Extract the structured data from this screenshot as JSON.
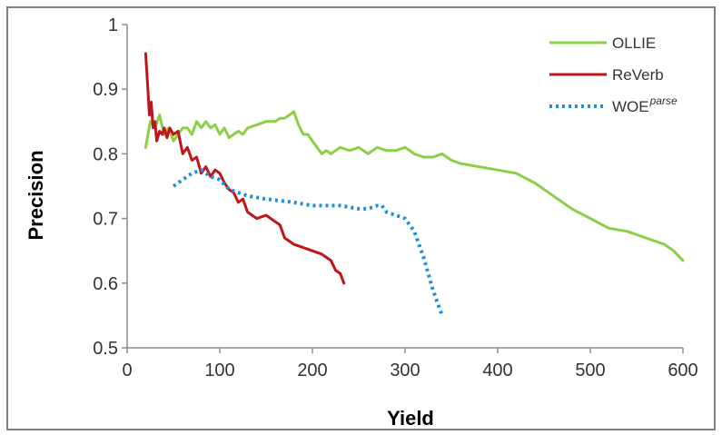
{
  "chart_data": {
    "type": "line",
    "xlabel": "Yield",
    "ylabel": "Precision",
    "xlim": [
      0,
      600
    ],
    "ylim": [
      0.5,
      1.0
    ],
    "x_ticks": [
      "0",
      "100",
      "200",
      "300",
      "400",
      "500",
      "600"
    ],
    "y_ticks": [
      "0.5",
      "0.6",
      "0.7",
      "0.8",
      "0.9",
      "1"
    ],
    "grid": false,
    "legend_position": "top-right",
    "series": [
      {
        "name": "OLLIE",
        "superscript": "",
        "color": "#8ccf45",
        "style": "solid",
        "x": [
          20,
          25,
          30,
          35,
          40,
          45,
          50,
          55,
          60,
          65,
          70,
          75,
          80,
          85,
          90,
          95,
          100,
          105,
          110,
          115,
          120,
          125,
          130,
          140,
          150,
          160,
          165,
          170,
          175,
          180,
          185,
          190,
          195,
          200,
          205,
          210,
          215,
          220,
          230,
          240,
          250,
          260,
          270,
          280,
          290,
          300,
          310,
          320,
          330,
          340,
          350,
          360,
          380,
          400,
          420,
          440,
          460,
          480,
          500,
          520,
          540,
          560,
          580,
          590,
          600
        ],
        "y": [
          0.81,
          0.85,
          0.84,
          0.86,
          0.83,
          0.84,
          0.82,
          0.83,
          0.84,
          0.84,
          0.83,
          0.85,
          0.84,
          0.85,
          0.84,
          0.845,
          0.83,
          0.84,
          0.825,
          0.83,
          0.835,
          0.83,
          0.84,
          0.845,
          0.85,
          0.85,
          0.855,
          0.855,
          0.86,
          0.865,
          0.845,
          0.83,
          0.83,
          0.82,
          0.81,
          0.8,
          0.805,
          0.8,
          0.81,
          0.805,
          0.81,
          0.8,
          0.81,
          0.805,
          0.805,
          0.81,
          0.8,
          0.795,
          0.795,
          0.8,
          0.79,
          0.785,
          0.78,
          0.775,
          0.77,
          0.755,
          0.735,
          0.715,
          0.7,
          0.685,
          0.68,
          0.67,
          0.66,
          0.65,
          0.635
        ]
      },
      {
        "name": "ReVerb",
        "superscript": "",
        "color": "#c0141c",
        "style": "solid",
        "x": [
          20,
          22,
          24,
          26,
          28,
          30,
          32,
          35,
          38,
          40,
          43,
          46,
          50,
          55,
          60,
          65,
          70,
          75,
          80,
          85,
          90,
          95,
          100,
          105,
          110,
          115,
          120,
          125,
          130,
          140,
          150,
          160,
          165,
          170,
          175,
          180,
          190,
          200,
          210,
          220,
          225,
          230,
          234
        ],
        "y": [
          0.955,
          0.91,
          0.86,
          0.88,
          0.84,
          0.85,
          0.82,
          0.835,
          0.83,
          0.84,
          0.825,
          0.84,
          0.83,
          0.835,
          0.8,
          0.81,
          0.79,
          0.795,
          0.77,
          0.78,
          0.765,
          0.775,
          0.77,
          0.755,
          0.745,
          0.74,
          0.725,
          0.73,
          0.71,
          0.7,
          0.705,
          0.695,
          0.69,
          0.67,
          0.665,
          0.66,
          0.655,
          0.65,
          0.645,
          0.635,
          0.62,
          0.615,
          0.6
        ]
      },
      {
        "name": "WOE",
        "superscript": "parse",
        "color": "#1f8fd6",
        "style": "dotted",
        "x": [
          50,
          60,
          70,
          80,
          90,
          100,
          110,
          120,
          130,
          150,
          180,
          200,
          230,
          250,
          260,
          270,
          275,
          280,
          290,
          300,
          310,
          320,
          330,
          340
        ],
        "y": [
          0.75,
          0.76,
          0.77,
          0.775,
          0.765,
          0.76,
          0.745,
          0.74,
          0.735,
          0.73,
          0.725,
          0.72,
          0.72,
          0.715,
          0.715,
          0.72,
          0.72,
          0.71,
          0.705,
          0.7,
          0.68,
          0.64,
          0.59,
          0.55
        ]
      }
    ]
  }
}
